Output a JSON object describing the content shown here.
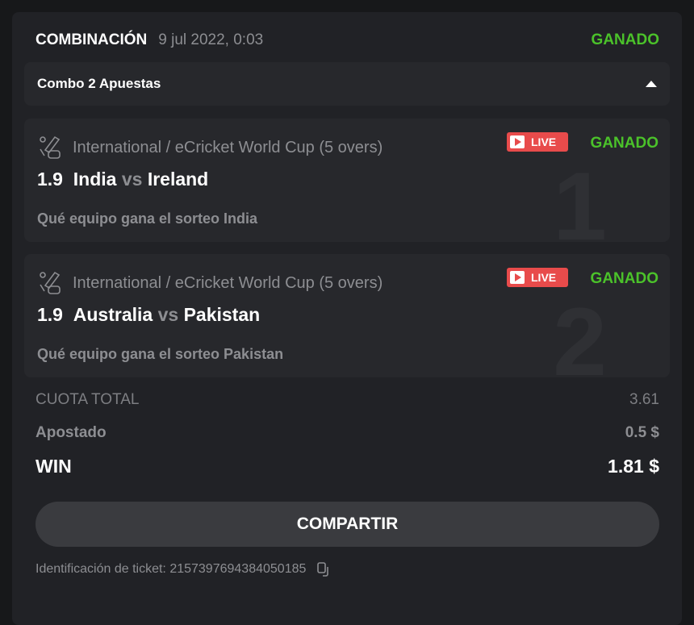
{
  "header": {
    "title": "COMBINACIÓN",
    "date": "9 jul 2022, 0:03",
    "status": "GANADO"
  },
  "combo": {
    "label": "Combo 2 Apuestas"
  },
  "selections": [
    {
      "index": "1",
      "league": "International / eCricket World Cup (5 overs)",
      "live": "LIVE",
      "status": "GANADO",
      "odds": "1.9",
      "home": "India",
      "vs": "vs",
      "away": "Ireland",
      "pick": "Qué equipo gana el sorteo India"
    },
    {
      "index": "2",
      "league": "International / eCricket World Cup (5 overs)",
      "live": "LIVE",
      "status": "GANADO",
      "odds": "1.9",
      "home": "Australia",
      "vs": "vs",
      "away": "Pakistan",
      "pick": "Qué equipo gana el sorteo Pakistan"
    }
  ],
  "totals": {
    "odds_label": "CUOTA TOTAL",
    "odds": "3.61",
    "stake_label": "Apostado",
    "stake": "0.5 $",
    "win_label": "WIN",
    "win": "1.81 $"
  },
  "share_label": "COMPARTIR",
  "ticket": {
    "label": "Identificación de ticket: 2157397694384050185"
  },
  "colors": {
    "won": "#4bc22a",
    "live": "#e84b4b"
  }
}
